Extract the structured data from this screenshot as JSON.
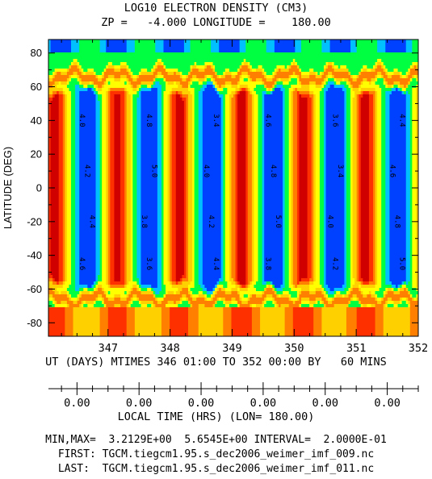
{
  "chart_data": {
    "type": "heatmap",
    "title": "LOG10 ELECTRON DENSITY (CM3)",
    "subtitle": "ZP =   -4.000 LONGITUDE =    180.00",
    "ylabel": "LATITUDE (DEG)",
    "xlabel": "UT (DAYS) MTIMES 346 01:00 TO 352 00:00 BY   60 MINS",
    "xlim": [
      346.04,
      352.0
    ],
    "ylim": [
      -88.0,
      88.0
    ],
    "x_ticks": [
      "347",
      "348",
      "349",
      "350",
      "351",
      "352"
    ],
    "y_ticks": [
      "80",
      "60",
      "40",
      "20",
      "0",
      "-20",
      "-40",
      "-60",
      "-80"
    ],
    "local_time_axis": {
      "label": "LOCAL TIME (HRS) (LON= 180.00)",
      "tick_labels": [
        "0.00",
        "0.00",
        "0.00",
        "0.00",
        "0.00",
        "0.00"
      ]
    },
    "min_value": 3.2129,
    "max_value": 5.6545,
    "contour_interval": 0.2,
    "contour_labels": [
      "4.0",
      "4.2",
      "4.4",
      "4.6",
      "4.8",
      "5.0",
      "3.8",
      "3.6",
      "3.4"
    ],
    "colormap": [
      "#00ffff",
      "#00ff40",
      "#ffff00",
      "#ff8000",
      "#ff2000",
      "#c00000",
      "#ff00ff",
      "#0040ff"
    ]
  },
  "footer": {
    "minmax": "MIN,MAX=  3.2129E+00  5.6545E+00 INTERVAL=  2.0000E-01",
    "first": "FIRST: TGCM.tiegcm1.95.s_dec2006_weimer_imf_009.nc",
    "last": "LAST:  TGCM.tiegcm1.95.s_dec2006_weimer_imf_011.nc"
  }
}
